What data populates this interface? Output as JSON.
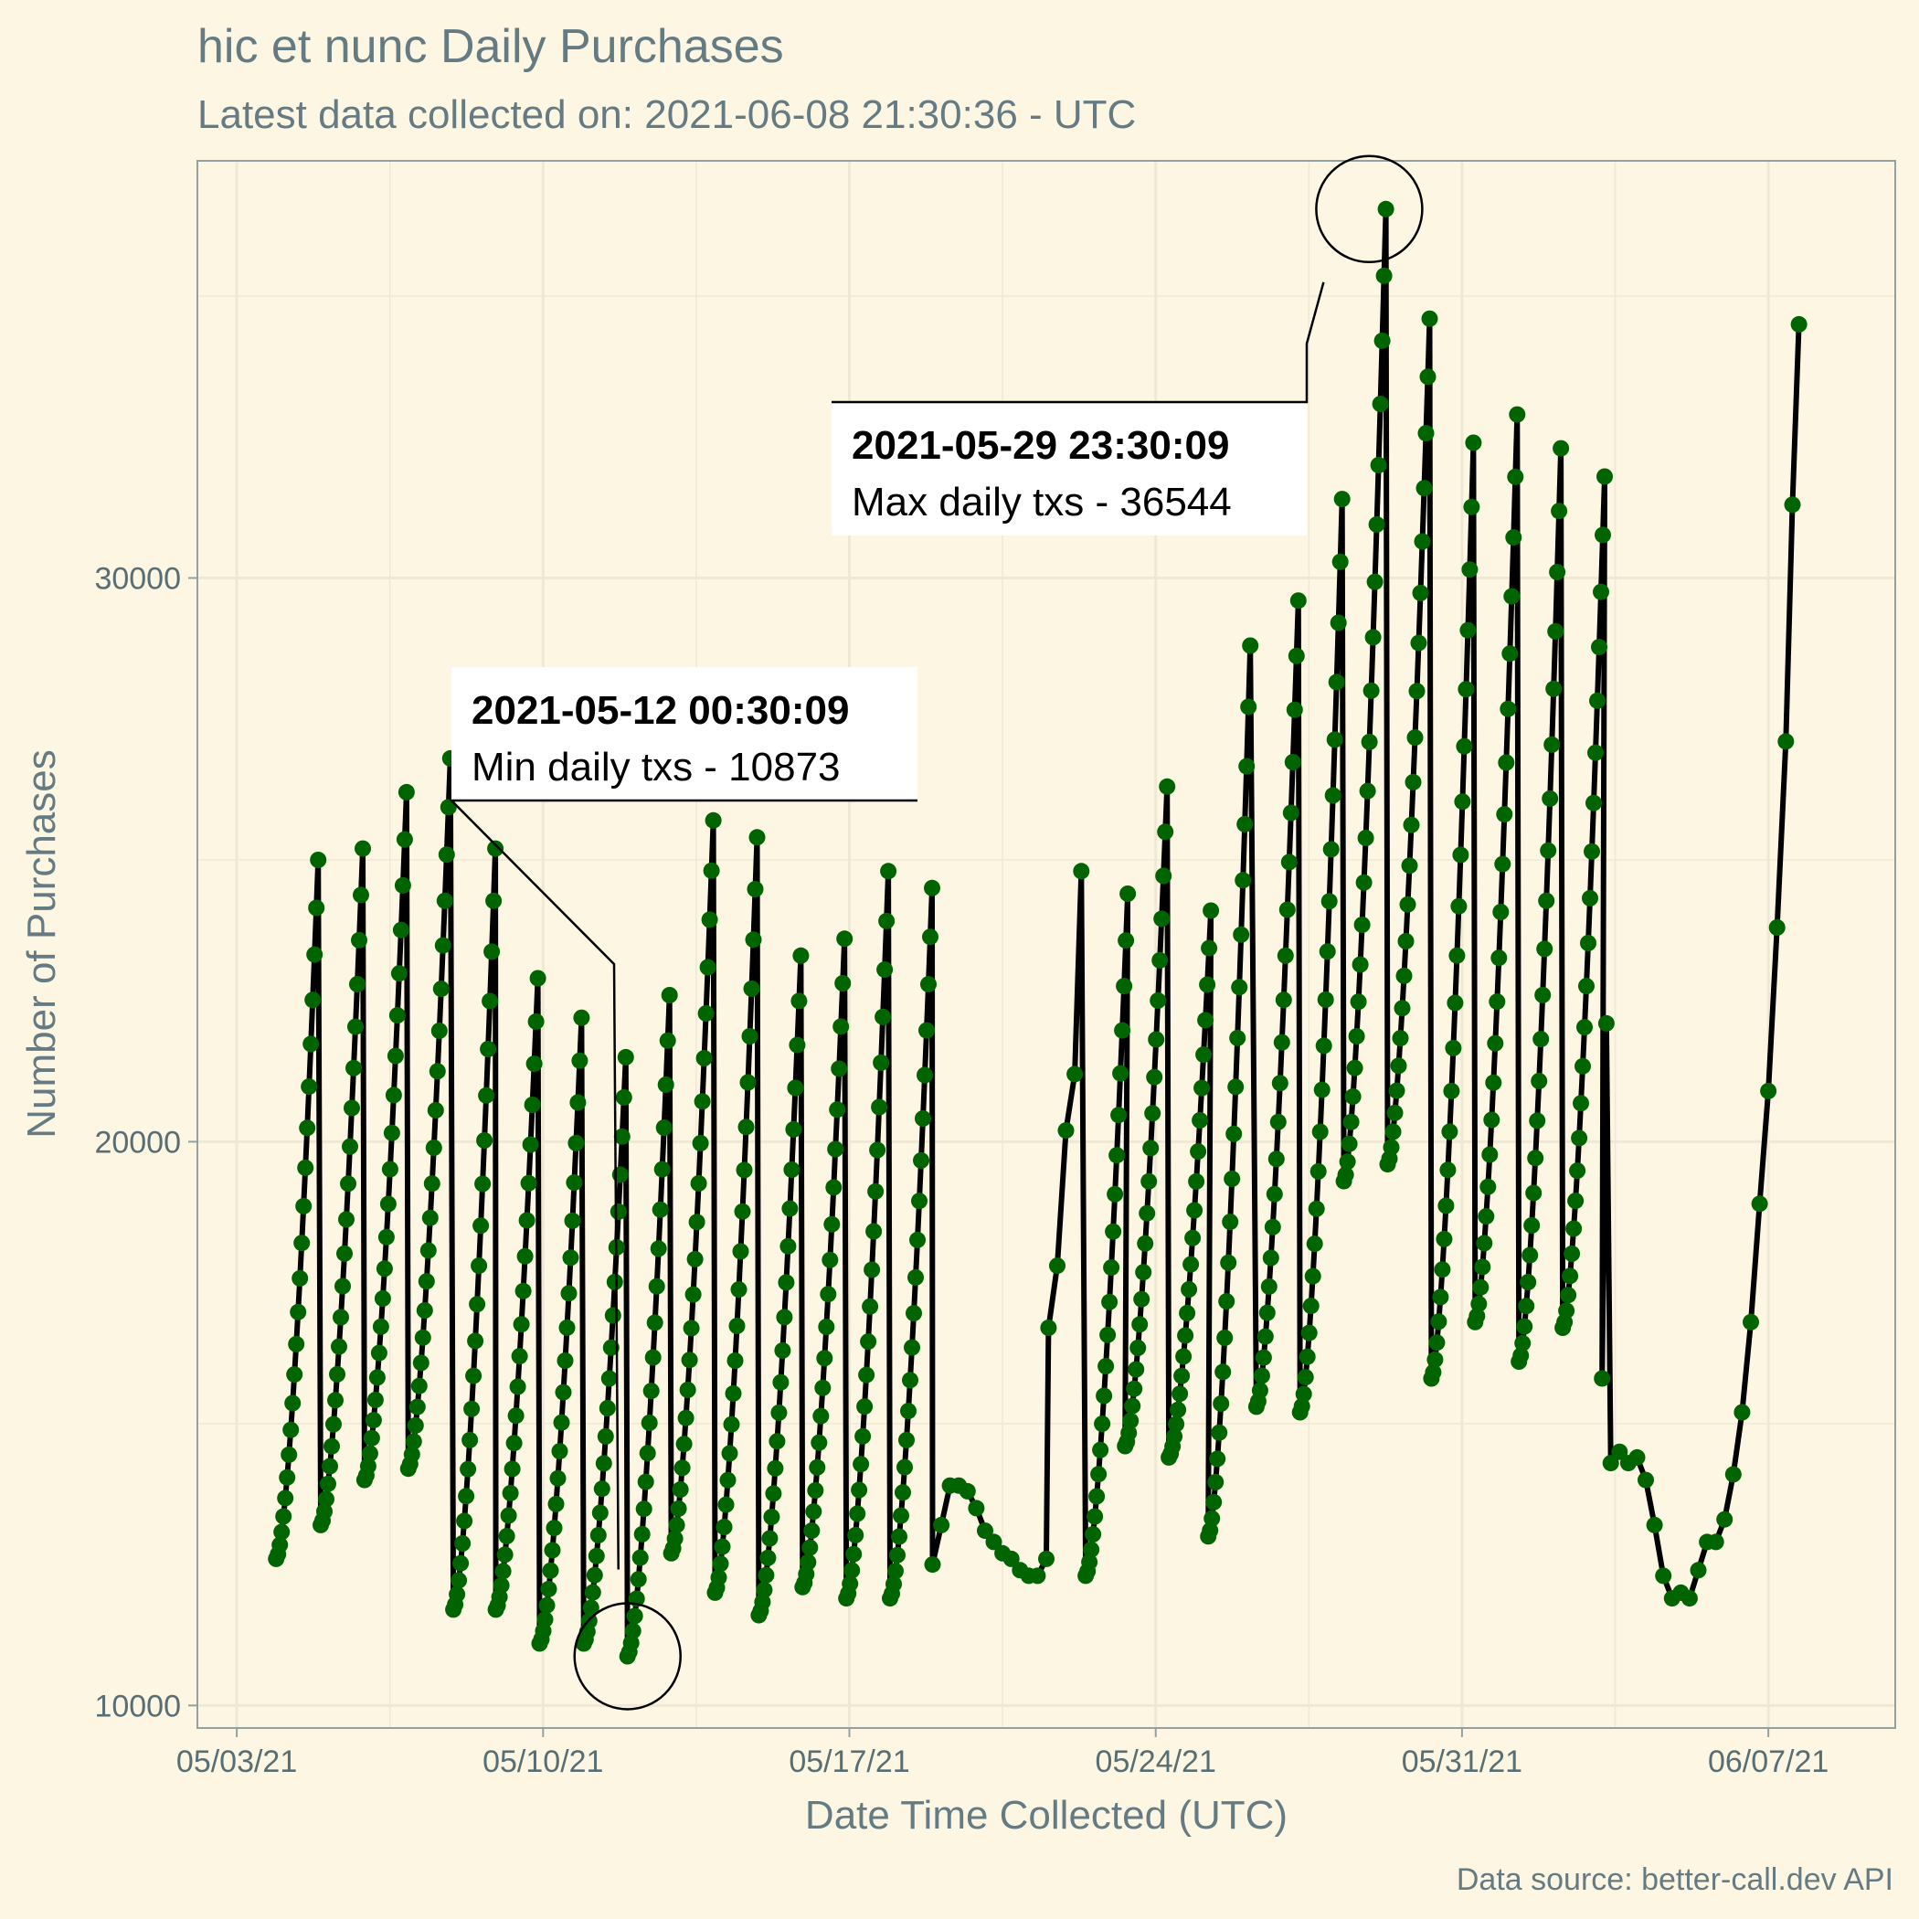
{
  "chart_data": {
    "type": "line",
    "title": "hic et nunc Daily Purchases",
    "subtitle": "Latest data collected on: 2021-06-08 21:30:36  - UTC",
    "xlabel": "Date Time Collected (UTC)",
    "ylabel": "Number of Purchases",
    "caption": "Data source: better-call.dev API",
    "x_ticks": [
      {
        "x": 0,
        "label": "05/03/21"
      },
      {
        "x": 7,
        "label": "05/10/21"
      },
      {
        "x": 14,
        "label": "05/17/21"
      },
      {
        "x": 21,
        "label": "05/24/21"
      },
      {
        "x": 28,
        "label": "05/31/21"
      },
      {
        "x": 35,
        "label": "06/07/21"
      }
    ],
    "y_ticks": [
      10000,
      20000,
      30000
    ],
    "xlim": [
      -0.9,
      37.9
    ],
    "ylim": [
      9600,
      37400
    ],
    "grid": true,
    "line_color": "#000000",
    "point_color": "#006400",
    "series": [
      {
        "daily_cycles": [
          {
            "start_day": 0.9,
            "min": 12600,
            "max": 25000
          },
          {
            "start_day": 1.92,
            "min": 13200,
            "max": 25200
          },
          {
            "start_day": 2.92,
            "min": 14000,
            "max": 26200
          },
          {
            "start_day": 3.92,
            "min": 14200,
            "max": 26800
          },
          {
            "start_day": 4.95,
            "min": 11700,
            "max": 25200
          },
          {
            "start_day": 5.92,
            "min": 11700,
            "max": 22900
          },
          {
            "start_day": 6.92,
            "min": 11100,
            "max": 22200
          },
          {
            "start_day": 7.93,
            "min": 11100,
            "max": 21500
          },
          {
            "start_day": 8.93,
            "min": 10873,
            "max": 22600
          },
          {
            "start_day": 9.93,
            "min": 12700,
            "max": 25700
          },
          {
            "start_day": 10.93,
            "min": 12000,
            "max": 25400
          },
          {
            "start_day": 11.93,
            "min": 11600,
            "max": 23300
          },
          {
            "start_day": 12.93,
            "min": 12100,
            "max": 23600
          },
          {
            "start_day": 13.93,
            "min": 11900,
            "max": 24800
          },
          {
            "start_day": 14.93,
            "min": 11900,
            "max": 24500
          }
        ],
        "points": [
          {
            "x": 15.9,
            "y": 12500
          },
          {
            "x": 16.1,
            "y": 13200
          },
          {
            "x": 16.3,
            "y": 13900
          },
          {
            "x": 16.5,
            "y": 13900
          },
          {
            "x": 16.7,
            "y": 13800
          },
          {
            "x": 16.9,
            "y": 13500
          },
          {
            "x": 17.1,
            "y": 13100
          },
          {
            "x": 17.3,
            "y": 12900
          },
          {
            "x": 17.5,
            "y": 12700
          },
          {
            "x": 17.7,
            "y": 12600
          },
          {
            "x": 17.9,
            "y": 12400
          },
          {
            "x": 18.1,
            "y": 12300
          },
          {
            "x": 18.3,
            "y": 12300
          },
          {
            "x": 18.5,
            "y": 12600
          },
          {
            "x": 18.55,
            "y": 16700
          },
          {
            "x": 18.75,
            "y": 17800
          },
          {
            "x": 18.95,
            "y": 20200
          },
          {
            "x": 19.15,
            "y": 21200
          },
          {
            "x": 19.3,
            "y": 24800
          }
        ],
        "more_daily_cycles": [
          {
            "start_day": 19.4,
            "min": 12300,
            "max": 24400
          },
          {
            "start_day": 20.3,
            "min": 14600,
            "max": 26300
          },
          {
            "start_day": 21.3,
            "min": 14400,
            "max": 24100
          },
          {
            "start_day": 22.2,
            "min": 13000,
            "max": 28800
          },
          {
            "start_day": 23.3,
            "min": 15300,
            "max": 29600
          },
          {
            "start_day": 24.3,
            "min": 15200,
            "max": 31400
          },
          {
            "start_day": 25.3,
            "min": 19300,
            "max": 36544
          },
          {
            "start_day": 26.3,
            "min": 19600,
            "max": 34600
          },
          {
            "start_day": 27.3,
            "min": 15800,
            "max": 32400
          },
          {
            "start_day": 28.3,
            "min": 16800,
            "max": 32900
          },
          {
            "start_day": 29.3,
            "min": 16100,
            "max": 32300
          },
          {
            "start_day": 30.3,
            "min": 16700,
            "max": 31800
          }
        ],
        "tail_points": [
          {
            "x": 31.2,
            "y": 15800
          },
          {
            "x": 31.3,
            "y": 22100
          },
          {
            "x": 31.4,
            "y": 14300
          },
          {
            "x": 31.6,
            "y": 14500
          },
          {
            "x": 31.8,
            "y": 14300
          },
          {
            "x": 32.0,
            "y": 14400
          },
          {
            "x": 32.2,
            "y": 14000
          },
          {
            "x": 32.4,
            "y": 13200
          },
          {
            "x": 32.6,
            "y": 12300
          },
          {
            "x": 32.8,
            "y": 11900
          },
          {
            "x": 33.0,
            "y": 12000
          },
          {
            "x": 33.2,
            "y": 11900
          },
          {
            "x": 33.4,
            "y": 12400
          },
          {
            "x": 33.6,
            "y": 12900
          },
          {
            "x": 33.8,
            "y": 12900
          },
          {
            "x": 34.0,
            "y": 13300
          },
          {
            "x": 34.2,
            "y": 14100
          },
          {
            "x": 34.4,
            "y": 15200
          },
          {
            "x": 34.6,
            "y": 16800
          },
          {
            "x": 34.8,
            "y": 18900
          },
          {
            "x": 35.0,
            "y": 20900
          },
          {
            "x": 35.2,
            "y": 23800
          },
          {
            "x": 35.4,
            "y": 27100
          },
          {
            "x": 35.55,
            "y": 31300
          },
          {
            "x": 35.7,
            "y": 34500
          }
        ]
      }
    ],
    "annotations": [
      {
        "id": "max",
        "x": 25.88,
        "y": 36544,
        "title": "2021-05-29 23:30:09",
        "text": "Max daily txs - 36544"
      },
      {
        "id": "min",
        "x": 8.93,
        "y": 10873,
        "title": "2021-05-12 00:30:09",
        "text": "Min daily txs - 10873"
      }
    ]
  }
}
